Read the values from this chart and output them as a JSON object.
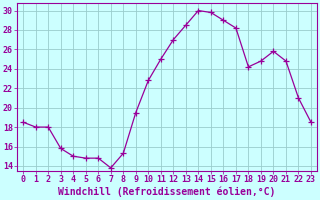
{
  "x": [
    0,
    1,
    2,
    3,
    4,
    5,
    6,
    7,
    8,
    9,
    10,
    11,
    12,
    13,
    14,
    15,
    16,
    17,
    18,
    19,
    20,
    21,
    22,
    23
  ],
  "y": [
    18.5,
    18.0,
    18.0,
    15.8,
    15.0,
    14.8,
    14.8,
    13.8,
    15.3,
    19.5,
    22.8,
    25.0,
    27.0,
    28.5,
    30.0,
    29.8,
    29.0,
    28.2,
    24.2,
    24.8,
    25.8,
    24.8,
    21.0,
    18.5
  ],
  "line_color": "#990099",
  "marker": "+",
  "marker_size": 4,
  "bg_color": "#ccffff",
  "grid_color": "#99cccc",
  "xlabel": "Windchill (Refroidissement éolien,°C)",
  "ylabel": "",
  "ylim": [
    13.5,
    30.8
  ],
  "xlim": [
    -0.5,
    23.5
  ],
  "yticks": [
    14,
    16,
    18,
    20,
    22,
    24,
    26,
    28,
    30
  ],
  "xticks": [
    0,
    1,
    2,
    3,
    4,
    5,
    6,
    7,
    8,
    9,
    10,
    11,
    12,
    13,
    14,
    15,
    16,
    17,
    18,
    19,
    20,
    21,
    22,
    23
  ],
  "tick_label_fontsize": 6,
  "xlabel_fontsize": 7
}
